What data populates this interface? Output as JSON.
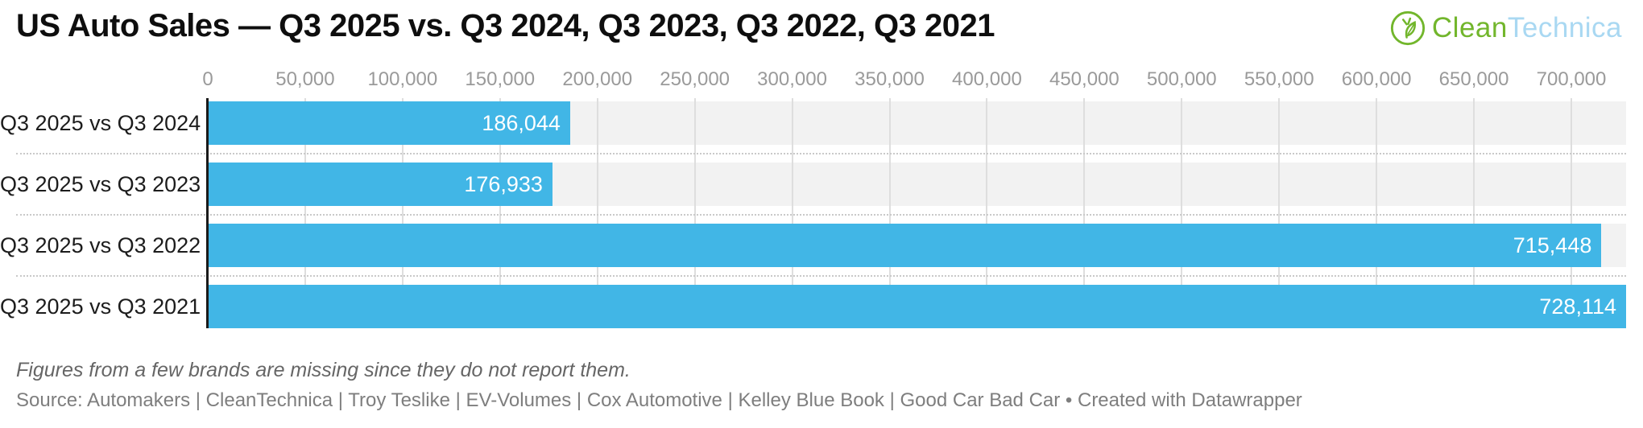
{
  "header": {
    "title": "US Auto Sales — Q3 2025 vs. Q3 2024, Q3 2023, Q3 2022, Q3 2021",
    "logo": {
      "part1": "Clean",
      "part2": "Technica",
      "icon": "cleantechnica-leaf-circle-icon",
      "green": "#72b62c",
      "light_blue": "#a9d8f2"
    }
  },
  "chart_data": {
    "type": "bar",
    "orientation": "horizontal",
    "title": "US Auto Sales — Q3 2025 vs. Q3 2024, Q3 2023, Q3 2022, Q3 2021",
    "xlabel": "",
    "ylabel": "",
    "categories": [
      "Q3 2025 vs Q3 2024",
      "Q3 2025 vs Q3 2023",
      "Q3 2025 vs Q3 2022",
      "Q3 2025 vs Q3 2021"
    ],
    "values": [
      186044,
      176933,
      715448,
      728114
    ],
    "value_labels": [
      "186,044",
      "176,933",
      "715,448",
      "728,114"
    ],
    "xlim": [
      0,
      728114
    ],
    "x_ticks": [
      {
        "value": 0,
        "label": "0"
      },
      {
        "value": 50000,
        "label": "50,000"
      },
      {
        "value": 100000,
        "label": "100,000"
      },
      {
        "value": 150000,
        "label": "150,000"
      },
      {
        "value": 200000,
        "label": "200,000"
      },
      {
        "value": 250000,
        "label": "250,000"
      },
      {
        "value": 300000,
        "label": "300,000"
      },
      {
        "value": 350000,
        "label": "350,000"
      },
      {
        "value": 400000,
        "label": "400,000"
      },
      {
        "value": 450000,
        "label": "450,000"
      },
      {
        "value": 500000,
        "label": "500,000"
      },
      {
        "value": 550000,
        "label": "550,000"
      },
      {
        "value": 600000,
        "label": "600,000"
      },
      {
        "value": 650000,
        "label": "650,000"
      },
      {
        "value": 700000,
        "label": "700,000"
      }
    ],
    "grid": true,
    "legend": false,
    "bar_color": "#41b6e6",
    "row_stripe_color": "#f2f2f2",
    "gridline_color": "#dedede",
    "axis_line_color": "#1a1a1a",
    "value_label_color": "#ffffff",
    "tick_label_color": "#9a9a9a"
  },
  "footer": {
    "note": "Figures from a few brands are missing since they do not report them.",
    "source": "Source: Automakers | CleanTechnica | Troy Teslike | EV-Volumes | Cox Automotive | Kelley Blue Book | Good Car Bad Car • Created with Datawrapper"
  }
}
